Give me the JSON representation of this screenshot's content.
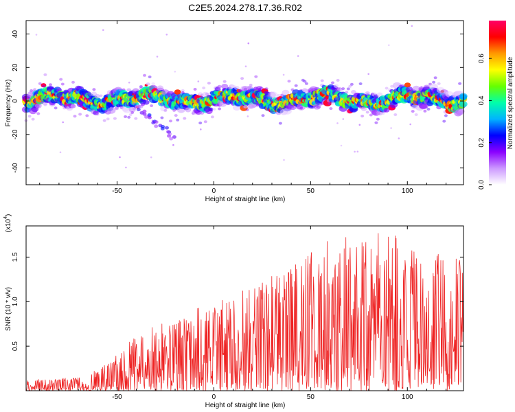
{
  "title": "C2E5.2024.278.17.36.R02",
  "chart_data": [
    {
      "type": "heatmap",
      "xlabel": "Height of straight line (km)",
      "ylabel": "Frequency (Hz)",
      "xlim": [
        -97,
        129
      ],
      "ylim": [
        -50,
        48
      ],
      "x_ticks": [
        "-50",
        "0",
        "50",
        "100"
      ],
      "y_ticks": [
        "40",
        "20",
        "0",
        "-20",
        "-40"
      ],
      "colorbar": {
        "label": "Normalized spectral amplitude",
        "range": [
          0.0,
          0.78
        ],
        "ticks": [
          "0.0",
          "0.2",
          "0.4",
          "0.6"
        ],
        "colormap": [
          "#ffffff",
          "#cc99ff",
          "#8a00ff",
          "#0000ff",
          "#00b4ff",
          "#00ffaa",
          "#66ff00",
          "#ffff00",
          "#ff9900",
          "#ff0000",
          "#ff0066"
        ]
      },
      "band": {
        "center_hz": 1,
        "half_width_hz": 5,
        "value_range": [
          0.1,
          0.75
        ]
      },
      "secondary_feature": {
        "x_range": [
          -38,
          -20
        ],
        "y_range": [
          -5,
          -22
        ]
      }
    },
    {
      "type": "line",
      "xlabel": "Height of straight line (km)",
      "ylabel": "SNR (10 * v/v)",
      "y_scale_label": "(x10",
      "y_scale_exponent": "4",
      "xlim": [
        -97,
        129
      ],
      "ylim": [
        0,
        1.85
      ],
      "x_ticks": [
        "-50",
        "0",
        "50",
        "100"
      ],
      "y_ticks": [
        "1.5",
        "1.0",
        "0.5"
      ],
      "color": "#ee2222",
      "envelope": [
        {
          "x": -97,
          "peak": 0.12
        },
        {
          "x": -70,
          "peak": 0.15
        },
        {
          "x": -55,
          "peak": 0.3
        },
        {
          "x": -45,
          "peak": 0.55
        },
        {
          "x": -25,
          "peak": 0.8
        },
        {
          "x": -5,
          "peak": 0.95
        },
        {
          "x": 15,
          "peak": 1.15
        },
        {
          "x": 40,
          "peak": 1.4
        },
        {
          "x": 60,
          "peak": 1.7
        },
        {
          "x": 90,
          "peak": 1.8
        },
        {
          "x": 110,
          "peak": 1.6
        },
        {
          "x": 129,
          "peak": 1.5
        }
      ]
    }
  ]
}
